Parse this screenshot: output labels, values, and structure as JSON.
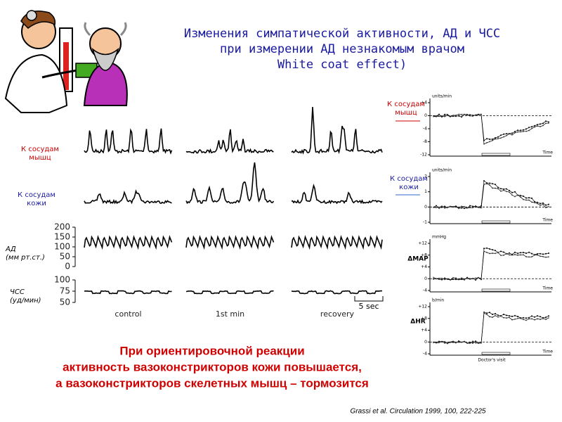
{
  "title": [
    "Изменения симпатической активности, АД и ЧСС",
    "при измерении АД незнакомым врачом",
    "White coat effect)"
  ],
  "left_panel": {
    "row_labels": [
      [
        "К сосудам",
        "мышц"
      ],
      [
        "К сосудам",
        "кожи"
      ],
      [
        "АД",
        "(мм рт.ст.)"
      ],
      [
        "ЧСС",
        "(уд/мин)"
      ]
    ],
    "bp_ticks": [
      "200",
      "150",
      "100",
      "50",
      "0"
    ],
    "hr_ticks": [
      "100",
      "75",
      "50"
    ],
    "columns": [
      "control",
      "1st min",
      "recovery"
    ],
    "scale_bar": "5 sec"
  },
  "right_panel": {
    "panels": [
      {
        "label": [
          "К сосудам",
          "мышц"
        ],
        "unit": "units/min",
        "ticks": [
          "+4",
          "0",
          "-4",
          "-8",
          "-12"
        ],
        "x_label": "Time"
      },
      {
        "label": [
          "К сосудам",
          "кожи"
        ],
        "unit": "units/min",
        "ticks": [
          "2",
          "1",
          "0",
          "-1"
        ],
        "x_label": "Time"
      },
      {
        "label": [
          "ΔMAP"
        ],
        "unit": "mmHg",
        "ticks": [
          "+12",
          "+8",
          "+4",
          "0",
          "-4"
        ],
        "x_label": "Time"
      },
      {
        "label": [
          "ΔHR"
        ],
        "unit": "b/min",
        "ticks": [
          "+12",
          "+8",
          "+4",
          "0",
          "-4"
        ],
        "x_label": "Time"
      }
    ],
    "x_note": "Doctor's visit"
  },
  "conclusion": [
    "При ориентировочной реакции",
    "активность вазоконстрикторов кожи повышается,",
    "а вазоконстрикторов скелетных мышц – тормозится"
  ],
  "citation": "Grassi et al. Circulation 1999, 100, 222-225"
}
